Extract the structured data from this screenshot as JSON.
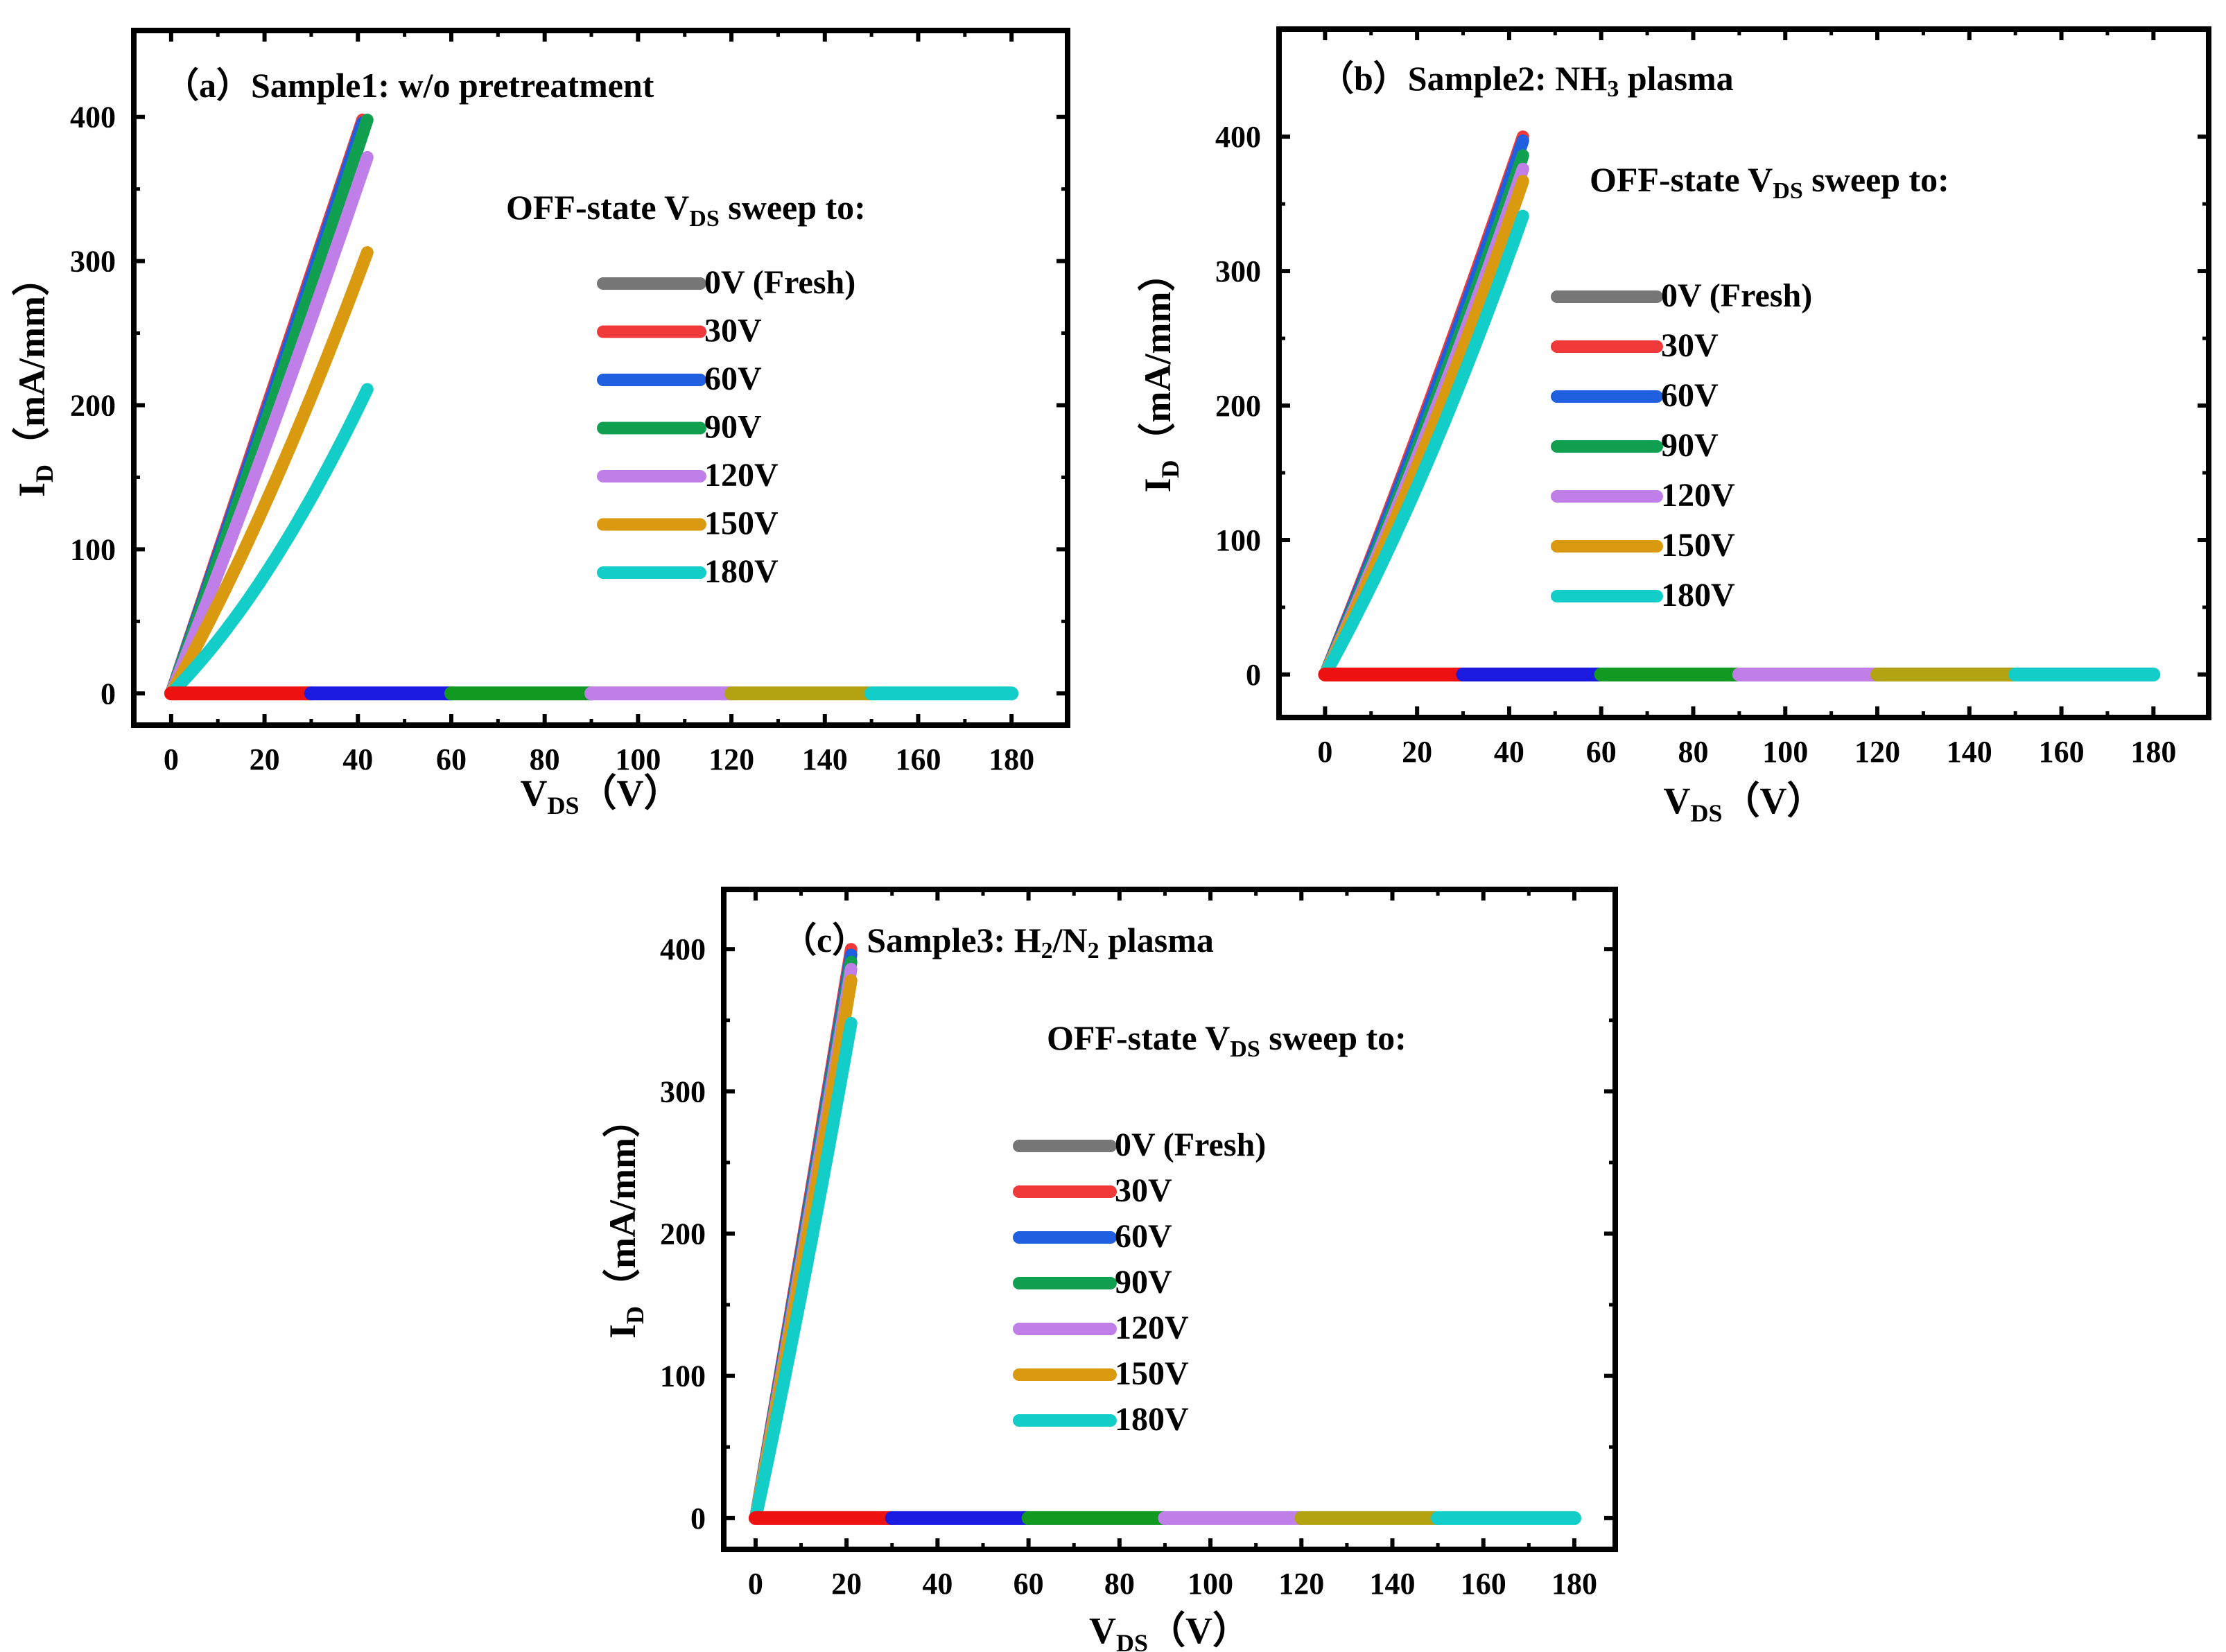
{
  "legend_title_prefix": "OFF-state V",
  "legend_title_sub": "DS",
  "legend_title_suffix": " sweep to:",
  "xlabel_main": "V",
  "xlabel_sub": "DS",
  "xlabel_unit": "（V）",
  "ylabel_main": "I",
  "ylabel_sub": "D",
  "ylabel_unit": "（mA/mm）",
  "chart_data": [
    {
      "type": "line",
      "panel": "(a)",
      "title_parts": [
        {
          "t": "（a）Sample1: w/o pretreatment",
          "sub": false
        }
      ],
      "xlabel": "VDS（V）",
      "ylabel": "ID（mA/mm）",
      "xlim": [
        -8,
        192
      ],
      "ylim": [
        -22,
        460
      ],
      "xticks": [
        0,
        20,
        40,
        60,
        80,
        100,
        120,
        140,
        160,
        180
      ],
      "yticks": [
        0,
        100,
        200,
        300,
        400
      ],
      "legend": [
        "0V  (Fresh)",
        "30V",
        "60V",
        "90V",
        "120V",
        "150V",
        "180V"
      ],
      "series": [
        {
          "name": "0V  (Fresh)",
          "color": "#777777",
          "vmax": 41,
          "imax": 398,
          "curv": 0.0
        },
        {
          "name": "30V",
          "color": "#f03a3a",
          "vmax": 41,
          "imax": 398,
          "curv": 0.0
        },
        {
          "name": "60V",
          "color": "#1f5fe0",
          "vmax": 41,
          "imax": 396,
          "curv": 0.02
        },
        {
          "name": "90V",
          "color": "#10a050",
          "vmax": 42,
          "imax": 398,
          "curv": 0.04
        },
        {
          "name": "120V",
          "color": "#c07ee8",
          "vmax": 42,
          "imax": 372,
          "curv": 0.08
        },
        {
          "name": "150V",
          "color": "#d99a10",
          "vmax": 42,
          "imax": 306,
          "curv": 0.2
        },
        {
          "name": "180V",
          "color": "#13cdc8",
          "vmax": 42,
          "imax": 211,
          "curv": 0.35
        }
      ],
      "off_segments": [
        {
          "x": [
            0,
            30
          ],
          "y": 0,
          "color": "#ee1111"
        },
        {
          "x": [
            30,
            60
          ],
          "y": 0,
          "color": "#1a1ae0"
        },
        {
          "x": [
            60,
            90
          ],
          "y": 0,
          "color": "#119922"
        },
        {
          "x": [
            90,
            120
          ],
          "y": 0,
          "color": "#c07ee8"
        },
        {
          "x": [
            120,
            150
          ],
          "y": 0,
          "color": "#b3a312"
        },
        {
          "x": [
            150,
            180
          ],
          "y": 0,
          "color": "#13cdc8"
        }
      ]
    },
    {
      "type": "line",
      "panel": "(b)",
      "title_parts": [
        {
          "t": "（b）Sample2: NH",
          "sub": false
        },
        {
          "t": "3",
          "sub": true
        },
        {
          "t": " plasma",
          "sub": false
        }
      ],
      "xlabel": "VDS（V）",
      "ylabel": "ID（mA/mm）",
      "xlim": [
        -10,
        192
      ],
      "ylim": [
        -32,
        480
      ],
      "xticks": [
        0,
        20,
        40,
        60,
        80,
        100,
        120,
        140,
        160,
        180
      ],
      "yticks": [
        0,
        100,
        200,
        300,
        400
      ],
      "legend": [
        "0V  (Fresh)",
        "30V",
        "60V",
        "90V",
        "120V",
        "150V",
        "180V"
      ],
      "series": [
        {
          "name": "0V  (Fresh)",
          "color": "#777777",
          "vmax": 43,
          "imax": 398,
          "curv": 0.08
        },
        {
          "name": "30V",
          "color": "#f03a3a",
          "vmax": 43,
          "imax": 400,
          "curv": 0.08
        },
        {
          "name": "60V",
          "color": "#1f5fe0",
          "vmax": 43,
          "imax": 397,
          "curv": 0.1
        },
        {
          "name": "90V",
          "color": "#10a050",
          "vmax": 43,
          "imax": 386,
          "curv": 0.12
        },
        {
          "name": "120V",
          "color": "#c07ee8",
          "vmax": 43,
          "imax": 376,
          "curv": 0.14
        },
        {
          "name": "150V",
          "color": "#d99a10",
          "vmax": 43,
          "imax": 367,
          "curv": 0.17
        },
        {
          "name": "180V",
          "color": "#13cdc8",
          "vmax": 43,
          "imax": 341,
          "curv": 0.22
        }
      ],
      "off_segments": [
        {
          "x": [
            0,
            30
          ],
          "y": 0,
          "color": "#ee1111"
        },
        {
          "x": [
            30,
            60
          ],
          "y": 0,
          "color": "#1a1ae0"
        },
        {
          "x": [
            60,
            90
          ],
          "y": 0,
          "color": "#119922"
        },
        {
          "x": [
            90,
            120
          ],
          "y": 0,
          "color": "#c07ee8"
        },
        {
          "x": [
            120,
            150
          ],
          "y": 0,
          "color": "#b3a312"
        },
        {
          "x": [
            150,
            180
          ],
          "y": 0,
          "color": "#13cdc8"
        }
      ]
    },
    {
      "type": "line",
      "panel": "(c)",
      "title_parts": [
        {
          "t": "（c）Sample3: H",
          "sub": false
        },
        {
          "t": "2",
          "sub": true
        },
        {
          "t": "/N",
          "sub": false
        },
        {
          "t": "2",
          "sub": true
        },
        {
          "t": " plasma",
          "sub": false
        }
      ],
      "xlabel": "VDS（V）",
      "ylabel": "ID（mA/mm）",
      "xlim": [
        -7,
        189
      ],
      "ylim": [
        -22,
        442
      ],
      "xticks": [
        0,
        20,
        40,
        60,
        80,
        100,
        120,
        140,
        160,
        180
      ],
      "yticks": [
        0,
        100,
        200,
        300,
        400
      ],
      "legend": [
        "0V  (Fresh)",
        "30V",
        "60V",
        "90V",
        "120V",
        "150V",
        "180V"
      ],
      "series": [
        {
          "name": "0V  (Fresh)",
          "color": "#777777",
          "vmax": 21,
          "imax": 399,
          "curv": 0.02
        },
        {
          "name": "30V",
          "color": "#f03a3a",
          "vmax": 21,
          "imax": 400,
          "curv": 0.02
        },
        {
          "name": "60V",
          "color": "#1f5fe0",
          "vmax": 21,
          "imax": 396,
          "curv": 0.03
        },
        {
          "name": "90V",
          "color": "#10a050",
          "vmax": 21,
          "imax": 391,
          "curv": 0.04
        },
        {
          "name": "120V",
          "color": "#c07ee8",
          "vmax": 21,
          "imax": 386,
          "curv": 0.05
        },
        {
          "name": "150V",
          "color": "#d99a10",
          "vmax": 21,
          "imax": 378,
          "curv": 0.07
        },
        {
          "name": "180V",
          "color": "#13cdc8",
          "vmax": 21,
          "imax": 348,
          "curv": 0.1
        }
      ],
      "off_segments": [
        {
          "x": [
            0,
            30
          ],
          "y": 0,
          "color": "#ee1111"
        },
        {
          "x": [
            30,
            60
          ],
          "y": 0,
          "color": "#1a1ae0"
        },
        {
          "x": [
            60,
            90
          ],
          "y": 0,
          "color": "#119922"
        },
        {
          "x": [
            90,
            120
          ],
          "y": 0,
          "color": "#c07ee8"
        },
        {
          "x": [
            120,
            150
          ],
          "y": 0,
          "color": "#b3a312"
        },
        {
          "x": [
            150,
            180
          ],
          "y": 0,
          "color": "#13cdc8"
        }
      ]
    }
  ]
}
